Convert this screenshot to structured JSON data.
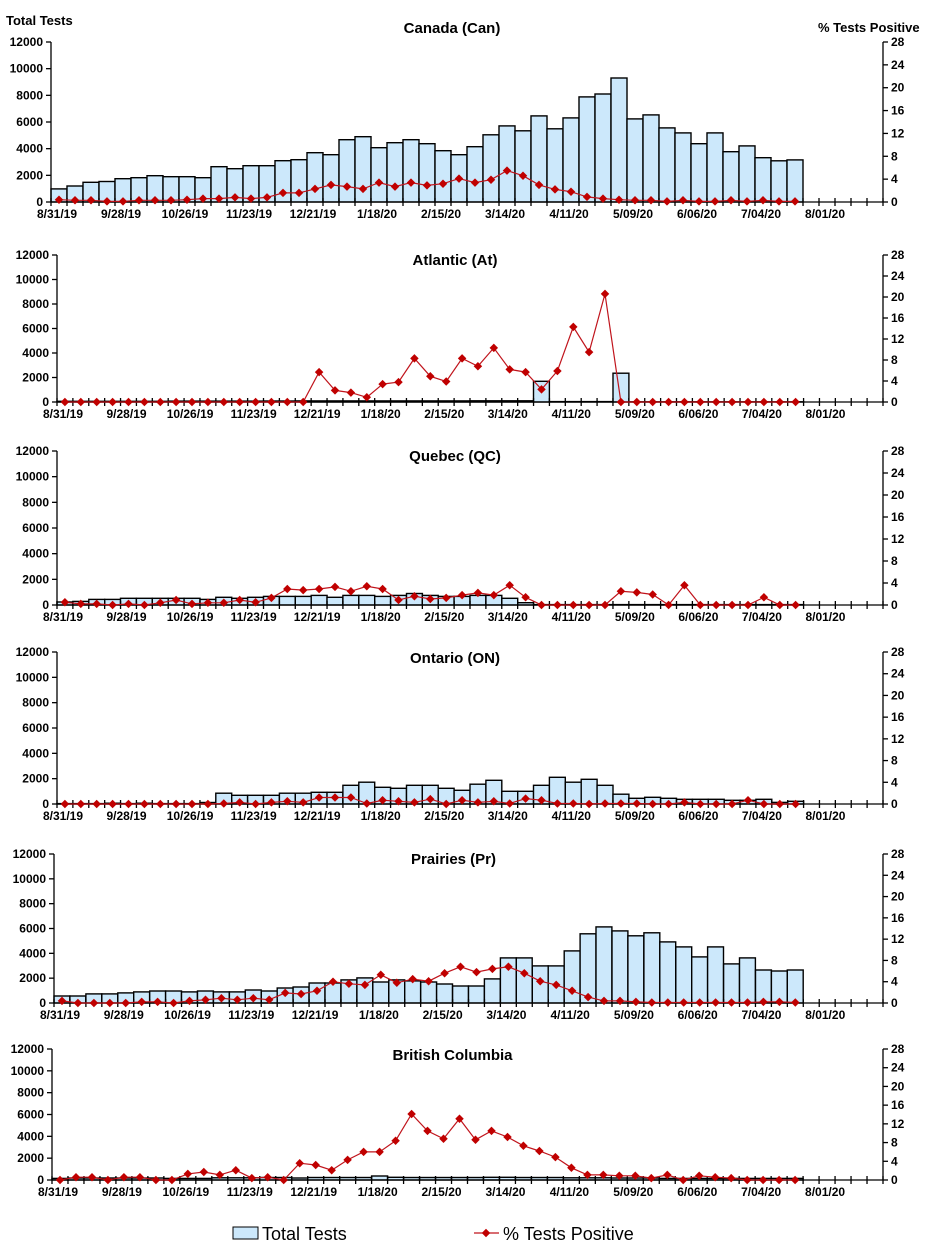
{
  "legend": {
    "bars_label": "Total Tests",
    "line_label": "% Tests Positive"
  },
  "colors": {
    "bar_fill": "#cce8fb",
    "bar_stroke": "#000000",
    "line": "#c0141c",
    "marker": "#c00000"
  },
  "chart_data": [
    {
      "type": "bar",
      "title": "Canada (Can)",
      "ylabel": "Total Tests",
      "y2label": "% Tests Positive",
      "ylim": [
        0,
        12000
      ],
      "yticks": [
        0,
        2000,
        4000,
        6000,
        8000,
        10000,
        12000
      ],
      "y2lim": [
        0,
        28
      ],
      "y2ticks": [
        0,
        4,
        8,
        12,
        16,
        20,
        24,
        28
      ],
      "n_weeks": 52,
      "xtick_labels": [
        "8/31/19",
        "9/28/19",
        "10/26/19",
        "11/23/19",
        "12/21/19",
        "1/18/20",
        "2/15/20",
        "3/14/20",
        "4/11/20",
        "5/09/20",
        "6/06/20",
        "7/04/20",
        "8/01/20"
      ],
      "series": [
        {
          "name": "Total Tests",
          "axis": "left",
          "values": [
            980,
            1200,
            1480,
            1540,
            1750,
            1820,
            1970,
            1900,
            1900,
            1820,
            2650,
            2500,
            2720,
            2720,
            3100,
            3170,
            3700,
            3550,
            4670,
            4900,
            4070,
            4450,
            4670,
            4370,
            3850,
            3550,
            4150,
            5040,
            5710,
            5340,
            6460,
            5490,
            6310,
            7880,
            8100,
            9300,
            6230,
            6530,
            5560,
            5180,
            4370,
            5180,
            3770,
            4210,
            3320,
            3090,
            3160
          ]
        },
        {
          "name": "% Tests Positive",
          "axis": "right",
          "values": [
            0.4,
            0.3,
            0.3,
            0.1,
            0.1,
            0.3,
            0.3,
            0.3,
            0.4,
            0.6,
            0.6,
            0.8,
            0.6,
            0.8,
            1.6,
            1.6,
            2.3,
            3.0,
            2.7,
            2.3,
            3.4,
            2.7,
            3.4,
            2.9,
            3.2,
            4.1,
            3.4,
            3.9,
            5.5,
            4.6,
            3.0,
            2.2,
            1.8,
            0.9,
            0.6,
            0.4,
            0.3,
            0.3,
            0.1,
            0.3,
            0.1,
            0.1,
            0.3,
            0.1,
            0.3,
            0.1,
            0.1
          ]
        }
      ]
    },
    {
      "type": "bar",
      "title": "Atlantic (At)",
      "ylim": [
        0,
        12000
      ],
      "yticks": [
        0,
        2000,
        4000,
        6000,
        8000,
        10000,
        12000
      ],
      "y2lim": [
        0,
        28
      ],
      "y2ticks": [
        0,
        4,
        8,
        12,
        16,
        20,
        24,
        28
      ],
      "n_weeks": 52,
      "xtick_labels": [
        "8/31/19",
        "9/28/19",
        "10/26/19",
        "11/23/19",
        "12/21/19",
        "1/18/20",
        "2/15/20",
        "3/14/20",
        "4/11/20",
        "5/09/20",
        "6/06/20",
        "7/04/20",
        "8/01/20"
      ],
      "series": [
        {
          "name": "Total Tests",
          "axis": "left",
          "values": [
            60,
            60,
            60,
            60,
            60,
            60,
            60,
            70,
            70,
            70,
            70,
            70,
            70,
            80,
            80,
            90,
            90,
            90,
            90,
            90,
            90,
            90,
            90,
            90,
            90,
            90,
            100,
            100,
            100,
            100,
            1690,
            30,
            30,
            30,
            30,
            2350,
            20,
            20,
            20,
            20,
            20,
            20,
            20,
            20,
            20,
            20,
            20
          ]
        },
        {
          "name": "% Tests Positive",
          "axis": "right",
          "values": [
            0,
            0,
            0,
            0,
            0,
            0,
            0,
            0,
            0,
            0,
            0,
            0,
            0,
            0,
            0,
            0,
            5.7,
            2.2,
            1.8,
            0.9,
            3.4,
            3.8,
            8.3,
            4.9,
            3.9,
            8.3,
            6.8,
            10.3,
            6.2,
            5.7,
            2.4,
            5.9,
            14.3,
            9.5,
            20.6,
            0,
            0,
            0,
            0,
            0,
            0,
            0,
            0,
            0,
            0,
            0,
            0
          ]
        }
      ]
    },
    {
      "type": "bar",
      "title": "Quebec (QC)",
      "ylim": [
        0,
        12000
      ],
      "yticks": [
        0,
        2000,
        4000,
        6000,
        8000,
        10000,
        12000
      ],
      "y2lim": [
        0,
        28
      ],
      "y2ticks": [
        0,
        4,
        8,
        12,
        16,
        20,
        24,
        28
      ],
      "n_weeks": 52,
      "xtick_labels": [
        "8/31/19",
        "9/28/19",
        "10/26/19",
        "11/23/19",
        "12/21/19",
        "1/18/20",
        "2/15/20",
        "3/14/20",
        "4/11/20",
        "5/09/20",
        "6/06/20",
        "7/04/20",
        "8/01/20"
      ],
      "series": [
        {
          "name": "Total Tests",
          "axis": "left",
          "values": [
            230,
            280,
            440,
            440,
            520,
            520,
            520,
            520,
            520,
            440,
            600,
            520,
            600,
            670,
            670,
            670,
            750,
            600,
            750,
            750,
            670,
            750,
            900,
            750,
            670,
            670,
            750,
            750,
            520,
            180,
            30,
            30,
            30,
            30,
            30,
            30,
            30,
            30,
            30,
            30,
            30,
            30,
            30,
            30,
            30,
            30,
            30
          ]
        },
        {
          "name": "% Tests Positive",
          "axis": "right",
          "values": [
            0.5,
            0.2,
            0.2,
            0,
            0.2,
            0,
            0.4,
            0.9,
            0.2,
            0.4,
            0.4,
            0.9,
            0.5,
            1.3,
            2.9,
            2.7,
            2.9,
            3.3,
            2.5,
            3.4,
            2.9,
            0.9,
            1.6,
            1.1,
            1.3,
            1.8,
            2.2,
            1.8,
            3.6,
            1.4,
            0,
            0,
            0,
            0,
            0,
            2.5,
            2.3,
            1.9,
            0,
            3.6,
            0,
            0,
            0,
            0,
            1.4,
            0,
            0
          ]
        }
      ]
    },
    {
      "type": "bar",
      "title": "Ontario (ON)",
      "ylim": [
        0,
        12000
      ],
      "yticks": [
        0,
        2000,
        4000,
        6000,
        8000,
        10000,
        12000
      ],
      "y2lim": [
        0,
        28
      ],
      "y2ticks": [
        0,
        4,
        8,
        12,
        16,
        20,
        24,
        28
      ],
      "n_weeks": 52,
      "xtick_labels": [
        "8/31/19",
        "9/28/19",
        "10/26/19",
        "11/23/19",
        "12/21/19",
        "1/18/20",
        "2/15/20",
        "3/14/20",
        "4/11/20",
        "5/09/20",
        "6/06/20",
        "7/04/20",
        "8/01/20"
      ],
      "series": [
        {
          "name": "Total Tests",
          "axis": "left",
          "values": [
            30,
            30,
            30,
            60,
            30,
            60,
            30,
            30,
            30,
            120,
            850,
            690,
            690,
            690,
            850,
            850,
            920,
            920,
            1480,
            1720,
            1320,
            1240,
            1480,
            1480,
            1240,
            1080,
            1560,
            1870,
            1000,
            1000,
            1480,
            2110,
            1720,
            1950,
            1480,
            770,
            450,
            530,
            450,
            370,
            370,
            370,
            290,
            290,
            370,
            130,
            210
          ]
        },
        {
          "name": "% Tests Positive",
          "axis": "right",
          "values": [
            0,
            0,
            0,
            0,
            0,
            0,
            0,
            0,
            0,
            0,
            0.1,
            0.3,
            0,
            0.3,
            0.5,
            0.3,
            1.2,
            1.2,
            1.2,
            0.1,
            0.7,
            0.5,
            0.3,
            0.9,
            0,
            0.7,
            0.3,
            0.5,
            0.1,
            1.0,
            0.7,
            0.1,
            0.1,
            0,
            0.1,
            0.1,
            0.1,
            0,
            0,
            0.3,
            0,
            0,
            0,
            0.7,
            0,
            0,
            0
          ]
        }
      ]
    },
    {
      "type": "bar",
      "title": "Prairies (Pr)",
      "ylim": [
        0,
        12000
      ],
      "yticks": [
        0,
        2000,
        4000,
        6000,
        8000,
        10000,
        12000
      ],
      "y2lim": [
        0,
        28
      ],
      "y2ticks": [
        0,
        4,
        8,
        12,
        16,
        20,
        24,
        28
      ],
      "n_weeks": 52,
      "xtick_labels": [
        "8/31/19",
        "9/28/19",
        "10/26/19",
        "11/23/19",
        "12/21/19",
        "1/18/20",
        "2/15/20",
        "3/14/20",
        "4/11/20",
        "5/09/20",
        "6/06/20",
        "7/04/20",
        "8/01/20"
      ],
      "series": [
        {
          "name": "Total Tests",
          "axis": "left",
          "values": [
            560,
            560,
            730,
            730,
            810,
            890,
            970,
            970,
            890,
            970,
            890,
            890,
            1050,
            970,
            1210,
            1290,
            1610,
            1610,
            1860,
            2020,
            1690,
            1860,
            1780,
            1690,
            1530,
            1370,
            1370,
            1940,
            3630,
            3630,
            2990,
            2990,
            4200,
            5570,
            6130,
            5810,
            5410,
            5650,
            4920,
            4520,
            3710,
            4520,
            3150,
            3630,
            2660,
            2580,
            2660
          ]
        },
        {
          "name": "% Tests Positive",
          "axis": "right",
          "values": [
            0.4,
            0,
            0,
            0,
            0,
            0.2,
            0.2,
            0,
            0.4,
            0.6,
            0.9,
            0.6,
            0.9,
            0.6,
            1.9,
            1.7,
            2.3,
            4.0,
            3.6,
            3.4,
            5.3,
            3.8,
            4.5,
            4.1,
            5.6,
            6.8,
            5.8,
            6.4,
            6.8,
            5.6,
            4.1,
            3.4,
            2.3,
            1.1,
            0.4,
            0.4,
            0.2,
            0.1,
            0.1,
            0.1,
            0.1,
            0.1,
            0.1,
            0.1,
            0.2,
            0.2,
            0.1
          ]
        }
      ]
    },
    {
      "type": "bar",
      "title": "British Columbia",
      "ylim": [
        0,
        12000
      ],
      "yticks": [
        0,
        2000,
        4000,
        6000,
        8000,
        10000,
        12000
      ],
      "y2lim": [
        0,
        28
      ],
      "y2ticks": [
        0,
        4,
        8,
        12,
        16,
        20,
        24,
        28
      ],
      "n_weeks": 52,
      "xtick_labels": [
        "8/31/19",
        "9/28/19",
        "10/26/19",
        "11/23/19",
        "12/21/19",
        "1/18/20",
        "2/15/20",
        "3/14/20",
        "4/11/20",
        "5/09/20",
        "6/06/20",
        "7/04/20",
        "8/01/20"
      ],
      "series": [
        {
          "name": "Total Tests",
          "axis": "left",
          "values": [
            150,
            180,
            180,
            180,
            180,
            180,
            180,
            150,
            150,
            150,
            200,
            200,
            200,
            230,
            230,
            180,
            230,
            230,
            230,
            230,
            370,
            250,
            230,
            230,
            230,
            230,
            230,
            250,
            250,
            230,
            230,
            230,
            200,
            200,
            200,
            180,
            180,
            180,
            150,
            150,
            150,
            150,
            150,
            150,
            150,
            150,
            150
          ]
        },
        {
          "name": "% Tests Positive",
          "axis": "right",
          "values": [
            0,
            0.6,
            0.6,
            0,
            0.6,
            0.6,
            0,
            0,
            1.3,
            1.7,
            1.1,
            2.1,
            0.4,
            0.6,
            0,
            3.6,
            3.2,
            2.1,
            4.3,
            6.0,
            6.0,
            8.4,
            14.1,
            10.5,
            8.8,
            13.1,
            8.6,
            10.5,
            9.2,
            7.3,
            6.2,
            4.9,
            2.6,
            1.1,
            1.1,
            0.9,
            0.9,
            0.4,
            1.1,
            0,
            0.9,
            0.6,
            0.4,
            0,
            0,
            0,
            0
          ]
        }
      ]
    }
  ],
  "header": {
    "left_axis_title": "Total Tests",
    "right_axis_title": "%  Tests Positive"
  }
}
